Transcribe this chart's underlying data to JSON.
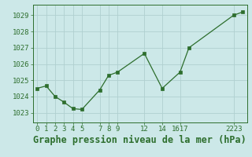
{
  "x": [
    0,
    1,
    2,
    3,
    4,
    5,
    7,
    8,
    9,
    12,
    14,
    16,
    17,
    22,
    23
  ],
  "y": [
    1024.5,
    1024.65,
    1024.0,
    1023.65,
    1023.25,
    1023.2,
    1024.4,
    1025.3,
    1025.5,
    1026.65,
    1024.5,
    1025.5,
    1027.0,
    1029.0,
    1029.2
  ],
  "xtick_positions": [
    0,
    1,
    2,
    3,
    4,
    5,
    7,
    8,
    9,
    12,
    14,
    16,
    22
  ],
  "xtick_labels": [
    "0",
    "1",
    "2",
    "3",
    "4",
    "5",
    "7",
    "8",
    "9",
    "12",
    "14",
    "1617",
    "2223"
  ],
  "yticks": [
    1023,
    1024,
    1025,
    1026,
    1027,
    1028,
    1029
  ],
  "ylim": [
    1022.4,
    1029.65
  ],
  "xlim": [
    -0.5,
    23.5
  ],
  "line_color": "#2d6e2d",
  "marker_color": "#2d6e2d",
  "bg_color": "#cce8e8",
  "grid_color": "#b0d0d0",
  "xlabel": "Graphe pression niveau de la mer (hPa)",
  "xlabel_color": "#2d6e2d",
  "xlabel_fontsize": 8.5,
  "tick_fontsize": 6.5,
  "spine_color": "#2d6e2d"
}
